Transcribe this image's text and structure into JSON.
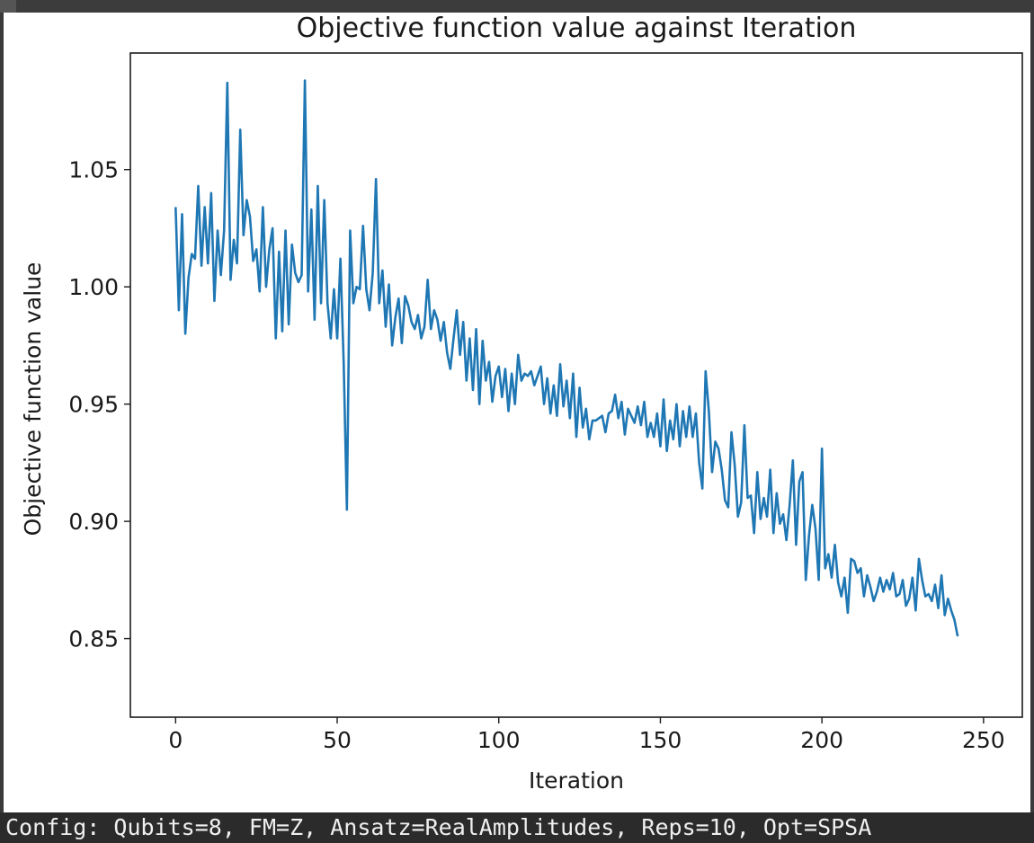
{
  "status_bar": {
    "config_text": "Config: Qubits=8, FM=Z, Ansatz=RealAmplitudes, Reps=10, Opt=SPSA"
  },
  "chart_data": {
    "type": "line",
    "title": "Objective function value against Iteration",
    "xlabel": "Iteration",
    "ylabel": "Objective function value",
    "xlim": [
      -14,
      262
    ],
    "ylim": [
      0.8165,
      1.0997
    ],
    "xticks": [
      0,
      50,
      100,
      150,
      200,
      250
    ],
    "xtick_labels": [
      "0",
      "50",
      "100",
      "150",
      "200",
      "250"
    ],
    "yticks": [
      0.85,
      0.9,
      0.95,
      1.0,
      1.05
    ],
    "ytick_labels": [
      "0.85",
      "0.90",
      "0.95",
      "1.00",
      "1.05"
    ],
    "grid": false,
    "line_color": "#1f77b4",
    "series": [
      {
        "values": [
          1.034,
          0.99,
          1.031,
          0.98,
          1.004,
          1.014,
          1.012,
          1.043,
          1.009,
          1.034,
          1.01,
          1.04,
          0.994,
          1.024,
          1.005,
          1.024,
          1.087,
          1.003,
          1.02,
          1.01,
          1.067,
          1.022,
          1.037,
          1.03,
          1.011,
          1.016,
          0.998,
          1.034,
          1.0,
          1.016,
          1.025,
          0.978,
          1.015,
          0.981,
          1.024,
          0.984,
          1.018,
          1.006,
          1.002,
          1.005,
          1.088,
          0.998,
          1.033,
          0.986,
          1.043,
          0.993,
          1.037,
          0.993,
          0.978,
          0.999,
          0.978,
          1.012,
          0.968,
          0.905,
          1.024,
          0.993,
          1.0,
          0.999,
          1.026,
          0.999,
          0.99,
          1.006,
          1.046,
          0.993,
          1.007,
          0.983,
          1.001,
          0.975,
          0.987,
          0.995,
          0.976,
          0.996,
          0.992,
          0.985,
          0.982,
          0.988,
          0.978,
          0.983,
          1.003,
          0.982,
          0.99,
          0.986,
          0.977,
          0.985,
          0.972,
          0.965,
          0.978,
          0.99,
          0.971,
          0.985,
          0.96,
          0.978,
          0.956,
          0.982,
          0.95,
          0.977,
          0.96,
          0.968,
          0.951,
          0.962,
          0.966,
          0.953,
          0.965,
          0.947,
          0.963,
          0.95,
          0.971,
          0.96,
          0.963,
          0.962,
          0.964,
          0.958,
          0.962,
          0.966,
          0.95,
          0.961,
          0.946,
          0.958,
          0.945,
          0.967,
          0.949,
          0.96,
          0.944,
          0.963,
          0.936,
          0.957,
          0.94,
          0.948,
          0.935,
          0.943,
          0.943,
          0.944,
          0.945,
          0.938,
          0.946,
          0.947,
          0.954,
          0.944,
          0.951,
          0.937,
          0.948,
          0.945,
          0.942,
          0.949,
          0.941,
          0.951,
          0.936,
          0.942,
          0.936,
          0.946,
          0.932,
          0.952,
          0.93,
          0.943,
          0.935,
          0.95,
          0.932,
          0.947,
          0.936,
          0.949,
          0.936,
          0.946,
          0.925,
          0.914,
          0.964,
          0.947,
          0.921,
          0.934,
          0.931,
          0.922,
          0.909,
          0.906,
          0.938,
          0.924,
          0.902,
          0.908,
          0.941,
          0.91,
          0.911,
          0.895,
          0.921,
          0.901,
          0.91,
          0.902,
          0.922,
          0.895,
          0.912,
          0.899,
          0.903,
          0.892,
          0.907,
          0.926,
          0.89,
          0.917,
          0.921,
          0.875,
          0.894,
          0.907,
          0.897,
          0.875,
          0.931,
          0.88,
          0.886,
          0.876,
          0.89,
          0.874,
          0.868,
          0.876,
          0.861,
          0.884,
          0.883,
          0.878,
          0.88,
          0.868,
          0.877,
          0.872,
          0.866,
          0.87,
          0.876,
          0.87,
          0.875,
          0.871,
          0.878,
          0.868,
          0.869,
          0.875,
          0.864,
          0.867,
          0.876,
          0.862,
          0.884,
          0.875,
          0.868,
          0.869,
          0.866,
          0.873,
          0.863,
          0.877,
          0.86,
          0.867,
          0.862,
          0.858,
          0.851
        ],
        "note_tail": null
      }
    ]
  }
}
